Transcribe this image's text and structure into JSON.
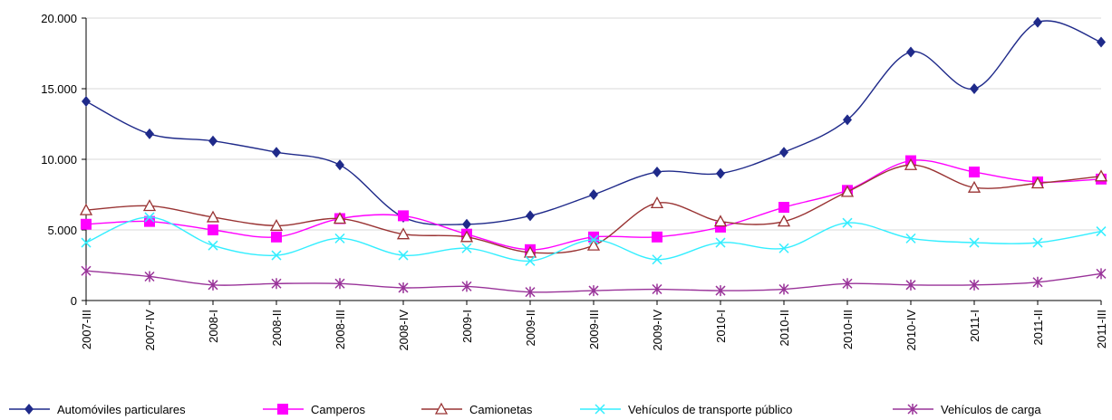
{
  "chart_data": {
    "type": "line",
    "categories": [
      "2007-III",
      "2007-IV",
      "2008-I",
      "2008-II",
      "2008-III",
      "2008-IV",
      "2009-I",
      "2009-II",
      "2009-III",
      "2009-IV",
      "2010-I",
      "2010-II",
      "2010-III",
      "2010-IV",
      "2011-I",
      "2011-II",
      "2011-III"
    ],
    "series": [
      {
        "name": "Automóviles particulares",
        "color": "#1f2a8a",
        "marker": "diamond",
        "values": [
          14100,
          11800,
          11300,
          10500,
          9600,
          5900,
          5400,
          6000,
          7500,
          9100,
          9000,
          10500,
          12800,
          17600,
          15000,
          19700,
          18300
        ]
      },
      {
        "name": "Camperos",
        "color": "#ff00ff",
        "marker": "square",
        "values": [
          5400,
          5600,
          5000,
          4500,
          5800,
          6000,
          4700,
          3600,
          4500,
          4500,
          5200,
          6600,
          7800,
          9900,
          9100,
          8400,
          8600
        ]
      },
      {
        "name": "Camionetas",
        "color": "#993333",
        "marker": "triangle",
        "values": [
          6400,
          6700,
          5900,
          5300,
          5800,
          4700,
          4500,
          3400,
          3900,
          6900,
          5600,
          5600,
          7700,
          9600,
          8000,
          8300,
          8800
        ]
      },
      {
        "name": "Vehículos de transporte público",
        "color": "#33eeff",
        "marker": "x",
        "values": [
          4100,
          5900,
          3900,
          3200,
          4400,
          3200,
          3700,
          2800,
          4300,
          2900,
          4100,
          3700,
          5500,
          4400,
          4100,
          4100,
          4900
        ]
      },
      {
        "name": "Vehículos de carga",
        "color": "#993399",
        "marker": "star",
        "values": [
          2100,
          1700,
          1100,
          1200,
          1200,
          900,
          1000,
          600,
          700,
          800,
          700,
          800,
          1200,
          1100,
          1100,
          1300,
          1900
        ]
      }
    ],
    "ylim": [
      0,
      20000
    ],
    "yticks": [
      0,
      {
        "value": 5000,
        "label": "5.000"
      },
      {
        "value": 10000,
        "label": "10.000"
      },
      {
        "value": 15000,
        "label": "15.000"
      },
      {
        "value": 20000,
        "label": "20.000"
      }
    ],
    "grid": true,
    "smooth": true,
    "legend": "bottom"
  }
}
